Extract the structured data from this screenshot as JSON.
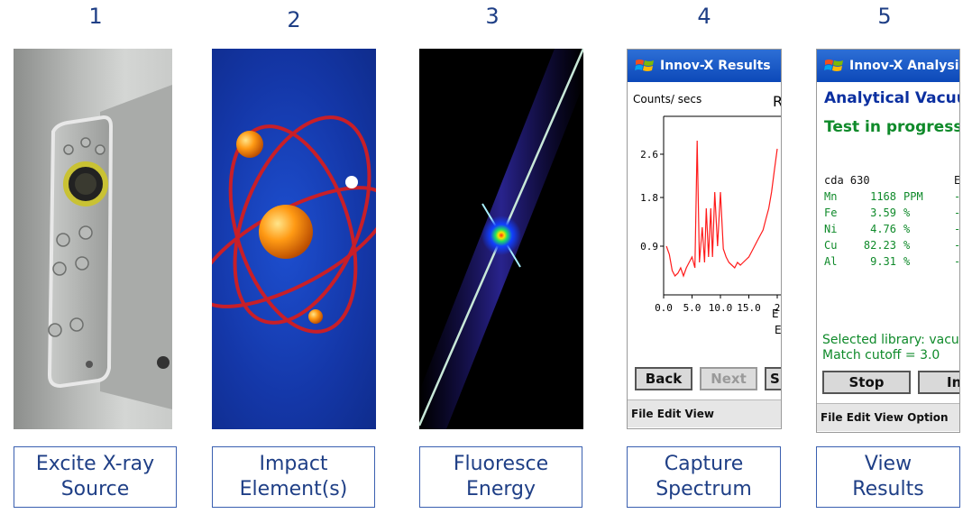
{
  "steps": [
    {
      "number": "1",
      "caption_line1": "Excite X-ray",
      "caption_line2": "Source"
    },
    {
      "number": "2",
      "caption_line1": "Impact",
      "caption_line2": "Element(s)"
    },
    {
      "number": "3",
      "caption_line1": "Fluoresce",
      "caption_line2": "Energy"
    },
    {
      "number": "4",
      "caption_line1": "Capture",
      "caption_line2": "Spectrum"
    },
    {
      "number": "5",
      "caption_line1": "View",
      "caption_line2": "Results"
    }
  ],
  "spectrum_screen": {
    "title": "Innov-X Results",
    "ylabel": "Counts/ secs",
    "corner_label": "R",
    "x_unit_fragment": "E",
    "y_ticks": [
      "2.6",
      "1.8",
      "0.9"
    ],
    "x_ticks": [
      "0.0",
      "5.0",
      "10.0",
      "15.0",
      "2"
    ],
    "side_marker": "E",
    "buttons": {
      "back": "Back",
      "next": "Next",
      "third": "S"
    },
    "menu": "File Edit View",
    "chart_data": {
      "type": "line",
      "x": [
        0.5,
        1,
        1.5,
        2,
        2.5,
        3,
        3.5,
        4,
        4.5,
        5,
        5.5,
        5.9,
        6.3,
        6.8,
        7.2,
        7.5,
        7.9,
        8.3,
        8.6,
        9.0,
        9.5,
        10,
        10.5,
        11,
        11.5,
        12,
        12.5,
        13,
        13.5,
        14,
        14.5,
        15,
        15.5,
        16,
        16.5,
        17,
        17.5,
        18,
        18.5,
        19,
        19.5,
        20
      ],
      "y": [
        0.9,
        0.75,
        0.45,
        0.35,
        0.4,
        0.5,
        0.35,
        0.5,
        0.6,
        0.7,
        0.5,
        2.85,
        0.6,
        1.25,
        0.6,
        1.6,
        0.7,
        1.6,
        0.7,
        1.9,
        0.9,
        1.9,
        0.85,
        0.7,
        0.6,
        0.55,
        0.5,
        0.6,
        0.55,
        0.6,
        0.65,
        0.7,
        0.8,
        0.9,
        1.0,
        1.1,
        1.2,
        1.4,
        1.6,
        1.9,
        2.3,
        2.7
      ],
      "xlim": [
        0,
        20
      ],
      "ylim": [
        0,
        3.3
      ],
      "color": "#ff1b1b"
    }
  },
  "results_screen": {
    "title": "Innov-X Analysis",
    "heading": "Analytical Vacuum",
    "status": "Test in progress.",
    "sample": "cda 630",
    "sample_col2": "E",
    "rows": [
      {
        "el": "Mn",
        "val": "1168",
        "unit": "PPM",
        "tail": "-"
      },
      {
        "el": "Fe",
        "val": "3.59",
        "unit": "%",
        "tail": "-"
      },
      {
        "el": "Ni",
        "val": "4.76",
        "unit": "%",
        "tail": "-"
      },
      {
        "el": "Cu",
        "val": "82.23",
        "unit": "%",
        "tail": "-"
      },
      {
        "el": "Al",
        "val": "9.31",
        "unit": "%",
        "tail": "-"
      }
    ],
    "library": "Selected library: vacu",
    "cutoff": "Match cutoff = 3.0",
    "buttons": {
      "stop": "Stop",
      "second": "In"
    },
    "menu": "File Edit View Option"
  },
  "colors": {
    "accent": "#1f3f86",
    "caption_border": "#3a5fb0",
    "titlebar": "#0c48b8",
    "result_green": "#0f8a2a"
  }
}
